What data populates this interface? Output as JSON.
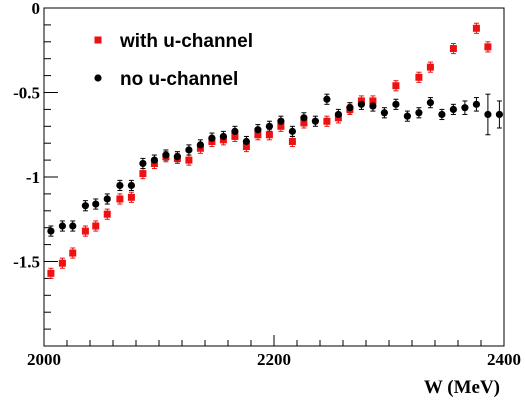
{
  "chart_data": {
    "type": "scatter",
    "xlabel": "W (MeV)",
    "ylabel": "",
    "xlim": [
      2000,
      2400
    ],
    "ylim": [
      -2.0,
      0.0
    ],
    "xticks": [
      {
        "value": 2000,
        "label": "2000"
      },
      {
        "value": 2200,
        "label": "2200"
      },
      {
        "value": 2400,
        "label": "2400"
      }
    ],
    "yticks": [
      {
        "value": 0,
        "label": "0"
      },
      {
        "value": -0.5,
        "label": "-0.5"
      },
      {
        "value": -1,
        "label": "-1"
      },
      {
        "value": -1.5,
        "label": "-1.5"
      }
    ],
    "legend_position": "top-left",
    "grid": false,
    "series": [
      {
        "name": "with u-channel",
        "marker": "square",
        "color": "#ee1111",
        "points": [
          {
            "x": 2006,
            "y": -1.57,
            "err": 0.03
          },
          {
            "x": 2016,
            "y": -1.51,
            "err": 0.03
          },
          {
            "x": 2025,
            "y": -1.45,
            "err": 0.03
          },
          {
            "x": 2036,
            "y": -1.32,
            "err": 0.03
          },
          {
            "x": 2045,
            "y": -1.29,
            "err": 0.03
          },
          {
            "x": 2055,
            "y": -1.22,
            "err": 0.03
          },
          {
            "x": 2066,
            "y": -1.13,
            "err": 0.03
          },
          {
            "x": 2076,
            "y": -1.12,
            "err": 0.03
          },
          {
            "x": 2086,
            "y": -0.98,
            "err": 0.03
          },
          {
            "x": 2096,
            "y": -0.92,
            "err": 0.03
          },
          {
            "x": 2106,
            "y": -0.88,
            "err": 0.03
          },
          {
            "x": 2116,
            "y": -0.89,
            "err": 0.03
          },
          {
            "x": 2126,
            "y": -0.9,
            "err": 0.03
          },
          {
            "x": 2136,
            "y": -0.83,
            "err": 0.03
          },
          {
            "x": 2146,
            "y": -0.79,
            "err": 0.03
          },
          {
            "x": 2156,
            "y": -0.78,
            "err": 0.03
          },
          {
            "x": 2166,
            "y": -0.76,
            "err": 0.03
          },
          {
            "x": 2176,
            "y": -0.82,
            "err": 0.03
          },
          {
            "x": 2186,
            "y": -0.75,
            "err": 0.03
          },
          {
            "x": 2196,
            "y": -0.75,
            "err": 0.03
          },
          {
            "x": 2206,
            "y": -0.7,
            "err": 0.03
          },
          {
            "x": 2216,
            "y": -0.79,
            "err": 0.03
          },
          {
            "x": 2226,
            "y": -0.68,
            "err": 0.03
          },
          {
            "x": 2246,
            "y": -0.67,
            "err": 0.03
          },
          {
            "x": 2256,
            "y": -0.65,
            "err": 0.03
          },
          {
            "x": 2266,
            "y": -0.6,
            "err": 0.03
          },
          {
            "x": 2276,
            "y": -0.55,
            "err": 0.03
          },
          {
            "x": 2286,
            "y": -0.55,
            "err": 0.03
          },
          {
            "x": 2306,
            "y": -0.46,
            "err": 0.03
          },
          {
            "x": 2326,
            "y": -0.41,
            "err": 0.03
          },
          {
            "x": 2336,
            "y": -0.35,
            "err": 0.03
          },
          {
            "x": 2356,
            "y": -0.24,
            "err": 0.03
          },
          {
            "x": 2376,
            "y": -0.12,
            "err": 0.03
          },
          {
            "x": 2386,
            "y": -0.23,
            "err": 0.03
          }
        ]
      },
      {
        "name": "no u-channel",
        "marker": "circle",
        "color": "#000000",
        "points": [
          {
            "x": 2006,
            "y": -1.32,
            "err": 0.03
          },
          {
            "x": 2016,
            "y": -1.29,
            "err": 0.03
          },
          {
            "x": 2025,
            "y": -1.29,
            "err": 0.03
          },
          {
            "x": 2036,
            "y": -1.17,
            "err": 0.03
          },
          {
            "x": 2045,
            "y": -1.16,
            "err": 0.03
          },
          {
            "x": 2055,
            "y": -1.13,
            "err": 0.03
          },
          {
            "x": 2066,
            "y": -1.05,
            "err": 0.03
          },
          {
            "x": 2076,
            "y": -1.05,
            "err": 0.03
          },
          {
            "x": 2086,
            "y": -0.92,
            "err": 0.03
          },
          {
            "x": 2096,
            "y": -0.9,
            "err": 0.03
          },
          {
            "x": 2106,
            "y": -0.87,
            "err": 0.03
          },
          {
            "x": 2116,
            "y": -0.88,
            "err": 0.03
          },
          {
            "x": 2126,
            "y": -0.84,
            "err": 0.03
          },
          {
            "x": 2136,
            "y": -0.81,
            "err": 0.03
          },
          {
            "x": 2146,
            "y": -0.77,
            "err": 0.03
          },
          {
            "x": 2156,
            "y": -0.76,
            "err": 0.03
          },
          {
            "x": 2166,
            "y": -0.73,
            "err": 0.03
          },
          {
            "x": 2176,
            "y": -0.79,
            "err": 0.03
          },
          {
            "x": 2186,
            "y": -0.72,
            "err": 0.03
          },
          {
            "x": 2196,
            "y": -0.7,
            "err": 0.03
          },
          {
            "x": 2206,
            "y": -0.67,
            "err": 0.03
          },
          {
            "x": 2216,
            "y": -0.73,
            "err": 0.03
          },
          {
            "x": 2226,
            "y": -0.65,
            "err": 0.03
          },
          {
            "x": 2236,
            "y": -0.67,
            "err": 0.03
          },
          {
            "x": 2246,
            "y": -0.54,
            "err": 0.03
          },
          {
            "x": 2256,
            "y": -0.63,
            "err": 0.03
          },
          {
            "x": 2266,
            "y": -0.59,
            "err": 0.03
          },
          {
            "x": 2276,
            "y": -0.57,
            "err": 0.03
          },
          {
            "x": 2286,
            "y": -0.58,
            "err": 0.03
          },
          {
            "x": 2296,
            "y": -0.62,
            "err": 0.03
          },
          {
            "x": 2306,
            "y": -0.57,
            "err": 0.03
          },
          {
            "x": 2316,
            "y": -0.64,
            "err": 0.03
          },
          {
            "x": 2326,
            "y": -0.62,
            "err": 0.03
          },
          {
            "x": 2336,
            "y": -0.56,
            "err": 0.03
          },
          {
            "x": 2346,
            "y": -0.63,
            "err": 0.03
          },
          {
            "x": 2356,
            "y": -0.6,
            "err": 0.03
          },
          {
            "x": 2366,
            "y": -0.59,
            "err": 0.04
          },
          {
            "x": 2376,
            "y": -0.57,
            "err": 0.04
          },
          {
            "x": 2386,
            "y": -0.63,
            "err": 0.12
          },
          {
            "x": 2396,
            "y": -0.63,
            "err": 0.08
          }
        ]
      }
    ]
  }
}
